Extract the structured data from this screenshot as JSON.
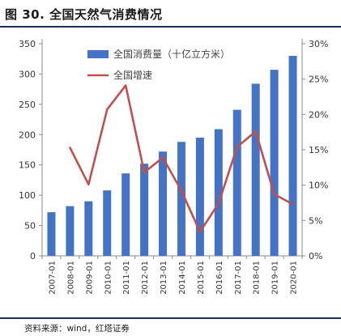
{
  "header": {
    "title": "图 30. 全国天然气消费情况"
  },
  "footer": {
    "source": "资料来源：wind，红塔证券"
  },
  "colors": {
    "bar": "#4472c4",
    "line": "#c0504d",
    "rule": "#1f2d5a"
  },
  "chart_data": {
    "type": "bar+line",
    "categories": [
      "2007-01",
      "2008-01",
      "2009-01",
      "2010-01",
      "2011-01",
      "2012-01",
      "2013-01",
      "2014-01",
      "2015-01",
      "2016-01",
      "2017-01",
      "2018-01",
      "2019-01",
      "2020-01"
    ],
    "series": [
      {
        "name": "全国消费量（十亿立方米）",
        "type": "bar",
        "axis": "left",
        "values": [
          72,
          82,
          90,
          108,
          136,
          152,
          172,
          188,
          195,
          209,
          241,
          284,
          307,
          330
        ]
      },
      {
        "name": "全国增速",
        "type": "line",
        "axis": "right",
        "unit": "%",
        "values": [
          null,
          15.3,
          10.1,
          20.7,
          24.1,
          11.8,
          13.9,
          9.2,
          3.4,
          7.4,
          15.4,
          17.6,
          8.7,
          7.3
        ]
      }
    ],
    "y_left": {
      "min": 0,
      "max": 350,
      "ticks": [
        0,
        50,
        100,
        150,
        200,
        250,
        300,
        350
      ]
    },
    "y_right": {
      "min": 0,
      "max": 30,
      "ticks": [
        "0%",
        "5%",
        "10%",
        "15%",
        "20%",
        "25%",
        "30%"
      ]
    },
    "legend": "top-left, inside",
    "grid": false
  }
}
